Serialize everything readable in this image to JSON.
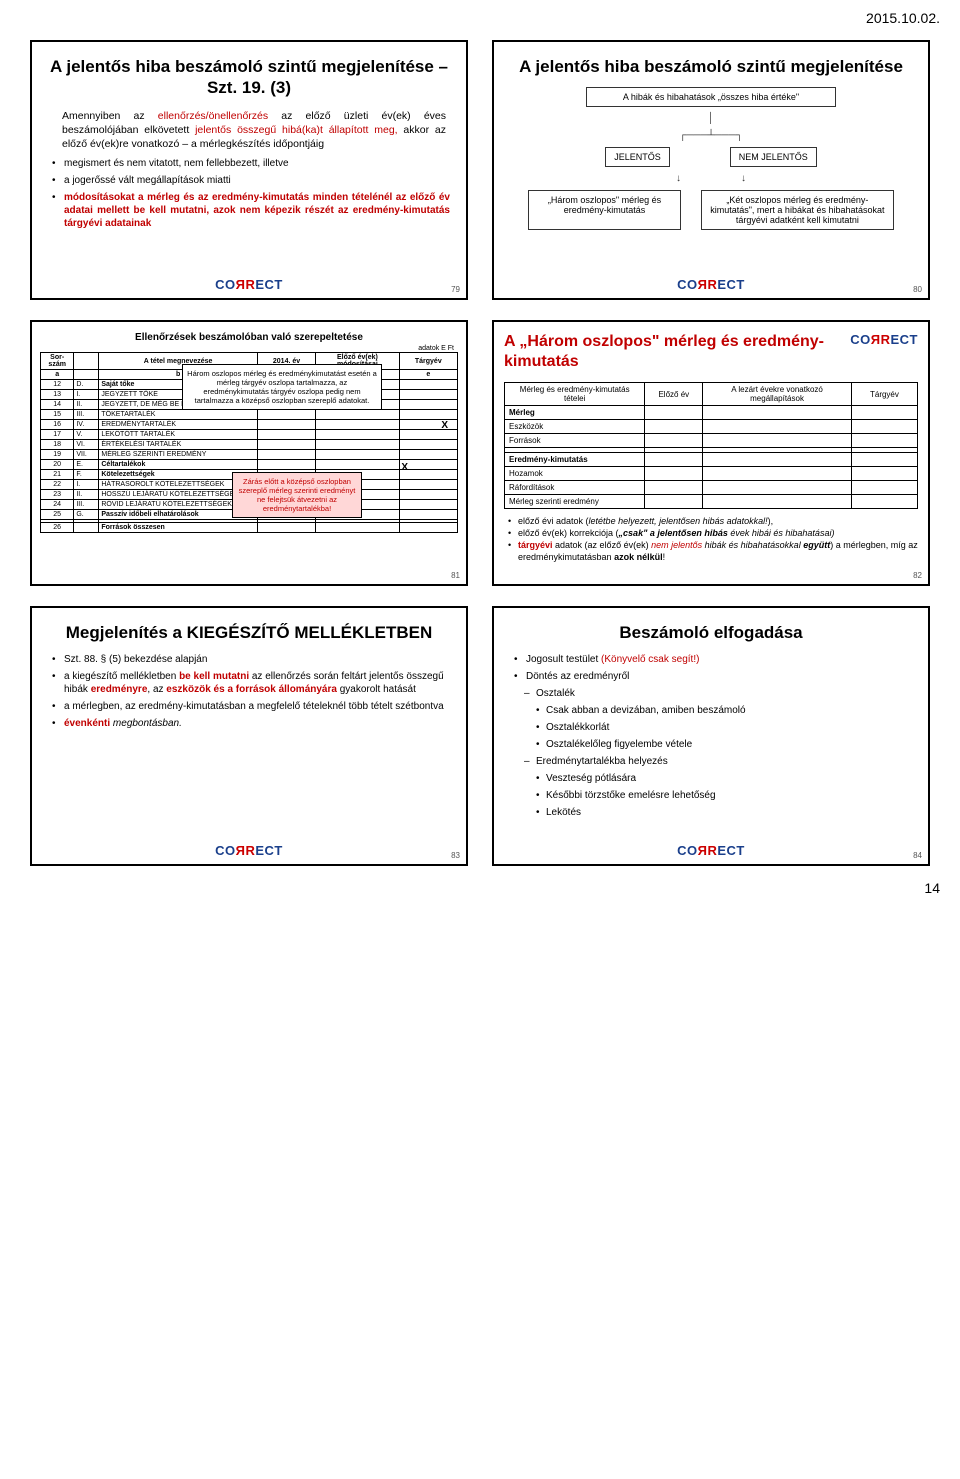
{
  "header_date": "2015.10.02.",
  "footer_page": "14",
  "logo": {
    "pre": "CO",
    "rr": "ЯR",
    "post": "ECT"
  },
  "slide79": {
    "num": "79",
    "title": "A jelentős hiba beszámoló szintű megjelenítése – Szt. 19. (3)",
    "para1_pre": "Amennyiben az ",
    "para1_red": "ellenőrzés/önellenőrzés",
    "para1_mid": " az előző üzleti év(ek) éves beszámolójában elkövetett ",
    "para1_red2": "jelentős összegű hibá(ka)t állapított meg,",
    "para1_post": " akkor az előző év(ek)re vonatkozó – a mérlegkészítés időpontjáig",
    "b1": "megismert és nem vitatott, nem fellebbezett, illetve",
    "b2": "a jogerőssé vált megállapítások miatti",
    "b3_red": "módosításokat a mérleg és az eredmény-kimutatás minden tételénél az előző év adatai mellett be kell mutatni, azok nem képezik részét az eredmény-kimutatás tárgyévi adatainak"
  },
  "slide80": {
    "num": "80",
    "title": "A jelentős hiba beszámoló szintű megjelenítése",
    "box1": "A hibák és hibahatások „összes hiba értéke\"",
    "box_jel": "JELENTŐS",
    "box_nem": "NEM JELENTŐS",
    "box_left": "„Három oszlopos\" mérleg és eredmény-kimutatás",
    "box_right": "„Két oszlopos mérleg és eredmény-kimutatás\", mert a hibákat és hibahatásokat tárgyévi adatként kell kimutatni"
  },
  "slide81": {
    "num": "81",
    "title": "Ellenőrzések beszámolóban való szerepeltetése",
    "unit": "adatok E Ft",
    "headers": [
      "Sor-szám",
      "",
      "A tétel megnevezése",
      "2014. év",
      "Előző év(ek) módosításai",
      "Tárgyév"
    ],
    "sub": [
      "a",
      "",
      "b",
      "c",
      "d",
      "e"
    ],
    "rows": [
      [
        "12",
        "D.",
        "Saját tőke"
      ],
      [
        "13",
        "I.",
        "JEGYZETT TŐKE"
      ],
      [
        "14",
        "II.",
        "JEGYZETT, DE MÉG BE NEM F"
      ],
      [
        "15",
        "III.",
        "TŐKETARTALÉK"
      ],
      [
        "16",
        "IV.",
        "EREDMÉNYTARTALÉK"
      ],
      [
        "17",
        "V.",
        "LEKÖTÖTT TARTALÉK"
      ],
      [
        "18",
        "VI.",
        "ÉRTÉKELÉSI TARTALÉK"
      ],
      [
        "19",
        "VII.",
        "MÉRLEG SZERINTI EREDMÉNY"
      ],
      [
        "20",
        "E.",
        "Céltartalékok"
      ],
      [
        "21",
        "F.",
        "Kötelezettségek"
      ],
      [
        "22",
        "I.",
        "HÁTRASOROLT KÖTELEZETTSÉGEK"
      ],
      [
        "23",
        "II.",
        "HOSSZÚ LEJÁRATÚ KÖTELEZETTSÉGEK"
      ],
      [
        "24",
        "III.",
        "RÖVID LEJÁRATÚ KÖTELEZETTSÉGEK"
      ],
      [
        "25",
        "G.",
        "Passzív időbeli elhatárolások"
      ],
      [
        "",
        "",
        ""
      ],
      [
        "26",
        "",
        "Források összesen"
      ]
    ],
    "note1": "Három oszlopos mérleg és eredménykimutatást esetén a mérleg tárgyév oszlopa tartalmazza, az eredménykimutatás tárgyév oszlopa pedig nem tartalmazza a középső oszlopban szereplő adatokat.",
    "note2": "Zárás előtt a középső oszlopban szereplő mérleg szerinti eredményt ne felejtsük átvezetni az eredménytartalékba!",
    "x": "X"
  },
  "slide82": {
    "num": "82",
    "title": "A „Három oszlopos\" mérleg és eredmény-kimutatás",
    "headers": [
      "Mérleg és eredmény-kimutatás tételei",
      "Előző év",
      "A lezárt évekre vonatkozó megállapítások",
      "Tárgyév"
    ],
    "rows": [
      "Mérleg",
      "Eszközök",
      "Források",
      "",
      "Eredmény-kimutatás",
      "Hozamok",
      "Ráfordítások",
      "Mérleg szerinti eredmény"
    ],
    "n1a": "előző évi adatok (",
    "n1b": "letétbe helyezett, jelentősen hibás adatokkal!",
    "n1c": "),",
    "n2a": "előző év(ek) korrekciója (",
    "n2b": "„csak\" a jelentősen hibás",
    "n2c": " évek hibái és hibahatásai)",
    "n3a": "tárgyévi",
    "n3b": " adatok (az előző év(ek) ",
    "n3c": "nem jelentős",
    "n3d": " hibák és hibahatásokkal ",
    "n3e": "együtt",
    "n3f": ") a mérlegben, míg az eredménykimutatásban ",
    "n3g": "azok nélkül",
    "n3h": "!"
  },
  "slide83": {
    "num": "83",
    "title": "Megjelenítés a KIEGÉSZÍTŐ MELLÉKLETBEN",
    "b1": "Szt. 88. § (5) bekezdése alapján",
    "b2a": "a kiegészítő mellékletben ",
    "b2b": "be kell mutatni",
    "b2c": " az ellenőrzés során feltárt jelentős összegű hibák ",
    "b2d": "eredményre",
    "b2e": ", az ",
    "b2f": "eszközök és a források állományára",
    "b2g": " gyakorolt hatását",
    "b3": "a mérlegben, az eredmény-kimutatásban a megfelelő tételeknél több tételt szétbontva",
    "b4a": "évenkénti ",
    "b4b": "megbontásban."
  },
  "slide84": {
    "num": "84",
    "title": "Beszámoló elfogadása",
    "b1a": "Jogosult testület ",
    "b1b": "(Könyvelő csak segít!)",
    "b2": "Döntés az eredményről",
    "b2s1": "Osztalék",
    "b2s1a": "Csak abban a devizában, amiben beszámoló",
    "b2s1b": "Osztalékkorlát",
    "b2s1c": "Osztalékelőleg figyelembe vétele",
    "b2s2": "Eredménytartalékba helyezés",
    "b2s2a": "Veszteség pótlására",
    "b2s2b": "Későbbi törzstőke emelésre lehetőség",
    "b2s2c": "Lekötés"
  }
}
